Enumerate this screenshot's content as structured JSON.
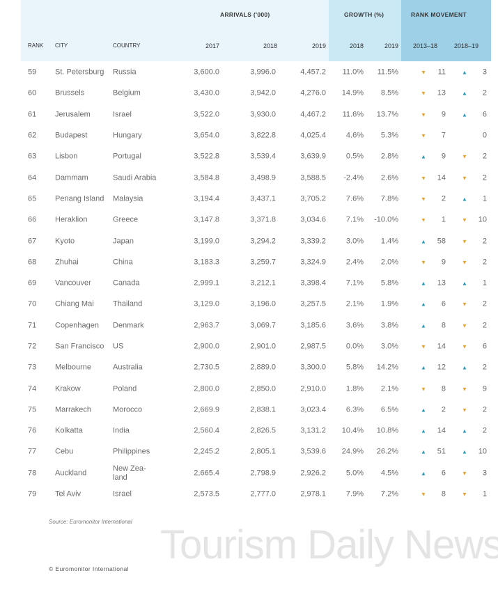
{
  "header": {
    "groups": {
      "arrivals": "ARRIVALS ('000)",
      "growth": "GROWTH (%)",
      "rank_movement": "RANK MOVEMENT"
    },
    "columns": [
      "RANK",
      "CITY",
      "COUNTRY",
      "2017",
      "2018",
      "2019",
      "2018",
      "2019",
      "2013–18",
      "2018–19"
    ]
  },
  "colors": {
    "up": "#2a9ab8",
    "down": "#e3a12f",
    "header_bg": "#e9f5fb",
    "growth_bg": "#cbe8f5",
    "rank_bg": "#9ed0e8"
  },
  "rows": [
    {
      "rank": "59",
      "city": "St. Petersburg",
      "country": "Russia",
      "a2017": "3,600.0",
      "a2018": "3,996.0",
      "a2019": "4,457.2",
      "g2018": "11.0%",
      "g2019": "11.5%",
      "m1318": {
        "dir": "down",
        "val": "11"
      },
      "m1819": {
        "dir": "up",
        "val": "3"
      }
    },
    {
      "rank": "60",
      "city": "Brussels",
      "country": "Belgium",
      "a2017": "3,430.0",
      "a2018": "3,942.0",
      "a2019": "4,276.0",
      "g2018": "14.9%",
      "g2019": "8.5%",
      "m1318": {
        "dir": "down",
        "val": "13"
      },
      "m1819": {
        "dir": "up",
        "val": "2"
      }
    },
    {
      "rank": "61",
      "city": "Jerusalem",
      "country": "Israel",
      "a2017": "3,522.0",
      "a2018": "3,930.0",
      "a2019": "4,467.2",
      "g2018": "11.6%",
      "g2019": "13.7%",
      "m1318": {
        "dir": "down",
        "val": "9"
      },
      "m1819": {
        "dir": "up",
        "val": "6"
      }
    },
    {
      "rank": "62",
      "city": "Budapest",
      "country": "Hungary",
      "a2017": "3,654.0",
      "a2018": "3,822.8",
      "a2019": "4,025.4",
      "g2018": "4.6%",
      "g2019": "5.3%",
      "m1318": {
        "dir": "down",
        "val": "7"
      },
      "m1819": {
        "dir": "none",
        "val": "0"
      }
    },
    {
      "rank": "63",
      "city": "Lisbon",
      "country": "Portugal",
      "a2017": "3,522.8",
      "a2018": "3,539.4",
      "a2019": "3,639.9",
      "g2018": "0.5%",
      "g2019": "2.8%",
      "m1318": {
        "dir": "up",
        "val": "9"
      },
      "m1819": {
        "dir": "down",
        "val": "2"
      }
    },
    {
      "rank": "64",
      "city": "Dammam",
      "country": "Saudi Arabia",
      "a2017": "3,584.8",
      "a2018": "3,498.9",
      "a2019": "3,588.5",
      "g2018": "-2.4%",
      "g2019": "2.6%",
      "m1318": {
        "dir": "down",
        "val": "14"
      },
      "m1819": {
        "dir": "down",
        "val": "2"
      }
    },
    {
      "rank": "65",
      "city": "Penang Island",
      "country": "Malaysia",
      "a2017": "3,194.4",
      "a2018": "3,437.1",
      "a2019": "3,705.2",
      "g2018": "7.6%",
      "g2019": "7.8%",
      "m1318": {
        "dir": "down",
        "val": "2"
      },
      "m1819": {
        "dir": "up",
        "val": "1"
      }
    },
    {
      "rank": "66",
      "city": "Heraklion",
      "country": "Greece",
      "a2017": "3,147.8",
      "a2018": "3,371.8",
      "a2019": "3,034.6",
      "g2018": "7.1%",
      "g2019": "-10.0%",
      "m1318": {
        "dir": "down",
        "val": "1"
      },
      "m1819": {
        "dir": "down",
        "val": "10"
      }
    },
    {
      "rank": "67",
      "city": "Kyoto",
      "country": "Japan",
      "a2017": "3,199.0",
      "a2018": "3,294.2",
      "a2019": "3,339.2",
      "g2018": "3.0%",
      "g2019": "1.4%",
      "m1318": {
        "dir": "up",
        "val": "58"
      },
      "m1819": {
        "dir": "down",
        "val": "2"
      }
    },
    {
      "rank": "68",
      "city": "Zhuhai",
      "country": "China",
      "a2017": "3,183.3",
      "a2018": "3,259.7",
      "a2019": "3,324.9",
      "g2018": "2.4%",
      "g2019": "2.0%",
      "m1318": {
        "dir": "down",
        "val": "9"
      },
      "m1819": {
        "dir": "down",
        "val": "2"
      }
    },
    {
      "rank": "69",
      "city": "Vancouver",
      "country": "Canada",
      "a2017": "2,999.1",
      "a2018": "3,212.1",
      "a2019": "3,398.4",
      "g2018": "7.1%",
      "g2019": "5.8%",
      "m1318": {
        "dir": "up",
        "val": "13"
      },
      "m1819": {
        "dir": "up",
        "val": "1"
      }
    },
    {
      "rank": "70",
      "city": "Chiang Mai",
      "country": "Thailand",
      "a2017": "3,129.0",
      "a2018": "3,196.0",
      "a2019": "3,257.5",
      "g2018": "2.1%",
      "g2019": "1.9%",
      "m1318": {
        "dir": "up",
        "val": "6"
      },
      "m1819": {
        "dir": "down",
        "val": "2"
      }
    },
    {
      "rank": "71",
      "city": "Copenhagen",
      "country": "Denmark",
      "a2017": "2,963.7",
      "a2018": "3,069.7",
      "a2019": "3,185.6",
      "g2018": "3.6%",
      "g2019": "3.8%",
      "m1318": {
        "dir": "up",
        "val": "8"
      },
      "m1819": {
        "dir": "down",
        "val": "2"
      }
    },
    {
      "rank": "72",
      "city": "San Francisco",
      "country": "US",
      "a2017": "2,900.0",
      "a2018": "2,901.0",
      "a2019": "2,987.5",
      "g2018": "0.0%",
      "g2019": "3.0%",
      "m1318": {
        "dir": "down",
        "val": "14"
      },
      "m1819": {
        "dir": "down",
        "val": "6"
      }
    },
    {
      "rank": "73",
      "city": "Melbourne",
      "country": "Australia",
      "a2017": "2,730.5",
      "a2018": "2,889.0",
      "a2019": "3,300.0",
      "g2018": "5.8%",
      "g2019": "14.2%",
      "m1318": {
        "dir": "up",
        "val": "12"
      },
      "m1819": {
        "dir": "up",
        "val": "2"
      }
    },
    {
      "rank": "74",
      "city": "Krakow",
      "country": "Poland",
      "a2017": "2,800.0",
      "a2018": "2,850.0",
      "a2019": "2,910.0",
      "g2018": "1.8%",
      "g2019": "2.1%",
      "m1318": {
        "dir": "down",
        "val": "8"
      },
      "m1819": {
        "dir": "down",
        "val": "9"
      }
    },
    {
      "rank": "75",
      "city": "Marrakech",
      "country": "Morocco",
      "a2017": "2,669.9",
      "a2018": "2,838.1",
      "a2019": "3,023.4",
      "g2018": "6.3%",
      "g2019": "6.5%",
      "m1318": {
        "dir": "up",
        "val": "2"
      },
      "m1819": {
        "dir": "down",
        "val": "2"
      }
    },
    {
      "rank": "76",
      "city": "Kolkatta",
      "country": "India",
      "a2017": "2,560.4",
      "a2018": "2,826.5",
      "a2019": "3,131.2",
      "g2018": "10.4%",
      "g2019": "10.8%",
      "m1318": {
        "dir": "up",
        "val": "14"
      },
      "m1819": {
        "dir": "up",
        "val": "2"
      }
    },
    {
      "rank": "77",
      "city": "Cebu",
      "country": "Philippines",
      "a2017": "2,245.2",
      "a2018": "2,805.1",
      "a2019": "3,539.6",
      "g2018": "24.9%",
      "g2019": "26.2%",
      "m1318": {
        "dir": "up",
        "val": "51"
      },
      "m1819": {
        "dir": "up",
        "val": "10"
      }
    },
    {
      "rank": "78",
      "city": "Auckland",
      "country": "New Zea-land",
      "a2017": "2,665.4",
      "a2018": "2,798.9",
      "a2019": "2,926.2",
      "g2018": "5.0%",
      "g2019": "4.5%",
      "m1318": {
        "dir": "up",
        "val": "6"
      },
      "m1819": {
        "dir": "down",
        "val": "3"
      }
    },
    {
      "rank": "79",
      "city": "Tel Aviv",
      "country": "Israel",
      "a2017": "2,573.5",
      "a2018": "2,777.0",
      "a2019": "2,978.1",
      "g2018": "7.9%",
      "g2019": "7.2%",
      "m1318": {
        "dir": "down",
        "val": "8"
      },
      "m1819": {
        "dir": "down",
        "val": "1"
      }
    }
  ],
  "footer": {
    "source": "Source: Euromonitor International",
    "copyright": "© Euromonitor International"
  },
  "watermark": "Tourism Daily News"
}
